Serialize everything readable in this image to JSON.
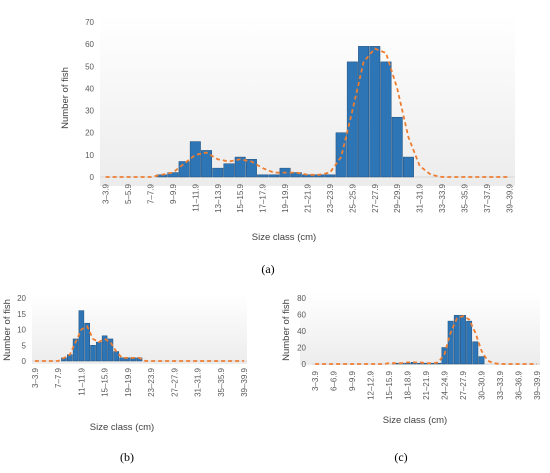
{
  "colors": {
    "bar": "#2E75B6",
    "bar_stroke": "#1F4E79",
    "trend": "#ED7D31",
    "axis": "#D9D9D9",
    "text": "#595959"
  },
  "chart_data": [
    {
      "id": "a",
      "panel_label": "(a)",
      "type": "bar",
      "title": "",
      "xlabel": "Size class (cm)",
      "ylabel": "Number of fish",
      "ylim": [
        0,
        70
      ],
      "yticks": [
        0,
        10,
        20,
        30,
        40,
        50,
        60,
        70
      ],
      "bin_start": 3,
      "bin_width": 1,
      "tick_labels": [
        "3–3.9",
        "5–5.9",
        "7–7.9",
        "9–9.9",
        "11–11.9",
        "13–13.9",
        "15–15.9",
        "17–17.9",
        "19–19.9",
        "21–21.9",
        "23–23.9",
        "25–25.9",
        "27–27.9",
        "29–29.9",
        "31–31.9",
        "33–33.9",
        "35–35.9",
        "37–37.9",
        "39–39.9"
      ],
      "values": [
        0,
        0,
        0,
        0,
        0,
        1,
        2,
        7,
        16,
        12,
        4,
        6,
        9,
        8,
        1,
        1,
        4,
        2,
        1,
        1,
        1,
        20,
        52,
        59,
        59,
        52,
        27,
        9,
        0,
        0,
        0,
        0,
        0,
        0,
        0,
        0,
        0
      ],
      "trend": [
        0,
        0,
        0,
        0,
        0,
        1,
        2,
        6,
        10,
        11,
        8,
        7,
        8,
        7,
        4,
        2,
        2,
        2,
        1,
        1,
        2,
        9,
        30,
        52,
        58,
        56,
        40,
        18,
        5,
        1,
        0,
        0,
        0,
        0,
        0,
        0,
        0
      ],
      "grid": false,
      "legend": "none"
    },
    {
      "id": "b",
      "panel_label": "(b)",
      "type": "bar",
      "title": "",
      "xlabel": "Size class (cm)",
      "ylabel": "Number of fish",
      "ylim": [
        0,
        20
      ],
      "yticks": [
        0,
        5,
        10,
        15,
        20
      ],
      "bin_start": 3,
      "bin_width": 1,
      "tick_labels": [
        "3–3.9",
        "7–7.9",
        "11–11.9",
        "15–15.9",
        "19–19.9",
        "23–23.9",
        "27–27.9",
        "31–31.9",
        "35–35.9",
        "39–39.9"
      ],
      "values": [
        0,
        0,
        0,
        0,
        0,
        1,
        2,
        7,
        16,
        12,
        5,
        6,
        8,
        7,
        3,
        1,
        1,
        1,
        1,
        0,
        0,
        0,
        0,
        0,
        0,
        0,
        0,
        0,
        0,
        0,
        0,
        0,
        0,
        0,
        0,
        0,
        0
      ],
      "trend": [
        0,
        0,
        0,
        0,
        0,
        1,
        2,
        6,
        10,
        11,
        7,
        6,
        7,
        6,
        3,
        1,
        1,
        1,
        1,
        0,
        0,
        0,
        0,
        0,
        0,
        0,
        0,
        0,
        0,
        0,
        0,
        0,
        0,
        0,
        0,
        0,
        0
      ],
      "grid": false,
      "legend": "none"
    },
    {
      "id": "c",
      "panel_label": "(c)",
      "type": "bar",
      "title": "",
      "xlabel": "Size class (cm)",
      "ylabel": "Number of fish",
      "ylim": [
        0,
        80
      ],
      "yticks": [
        0,
        20,
        40,
        60,
        80
      ],
      "bin_start": 3,
      "bin_width": 1,
      "tick_labels": [
        "3–3.9",
        "6–6.9",
        "9–9.9",
        "12–12.9",
        "15–15.9",
        "18–18.9",
        "21–21.9",
        "24–24.9",
        "27–27.9",
        "30–30.9",
        "33–33.9",
        "36–36.9",
        "39–39.9"
      ],
      "values": [
        0,
        0,
        0,
        0,
        0,
        0,
        0,
        0,
        0,
        0,
        0,
        0,
        0,
        1,
        1,
        1,
        2,
        1,
        1,
        1,
        1,
        20,
        52,
        59,
        59,
        52,
        27,
        9,
        0,
        0,
        0,
        0,
        0,
        0,
        0,
        0,
        0
      ],
      "trend": [
        0,
        0,
        0,
        0,
        0,
        0,
        0,
        0,
        0,
        0,
        0,
        0,
        1,
        1,
        1,
        2,
        2,
        2,
        1,
        1,
        2,
        12,
        38,
        55,
        58,
        54,
        38,
        16,
        4,
        1,
        0,
        0,
        0,
        0,
        0,
        0,
        0
      ],
      "grid": false,
      "legend": "none"
    }
  ]
}
